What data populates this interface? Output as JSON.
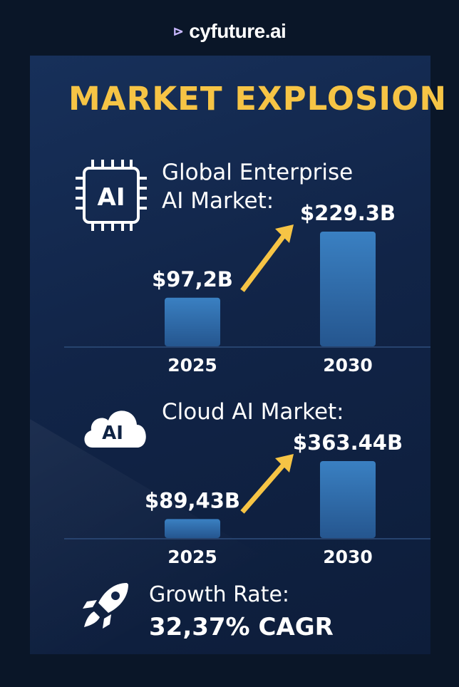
{
  "logo": {
    "text": "cyfuture.ai"
  },
  "title": "MARKET EXPLOSION",
  "colors": {
    "background": "#0a1628",
    "title": "#f6c445",
    "bar": "#3377b8",
    "arrow": "#f6c445"
  },
  "sections": [
    {
      "icon": "ai-chip-icon",
      "heading_line1": "Global Enterprise",
      "heading_line2": "AI Market:"
    },
    {
      "icon": "ai-cloud-icon",
      "heading_line1": "Cloud AI Market:",
      "heading_line2": ""
    }
  ],
  "growth": {
    "icon": "rocket-icon",
    "label": "Growth Rate:",
    "value": "32,37% CAGR"
  },
  "chart_data": [
    {
      "type": "bar",
      "title": "Global Enterprise AI Market:",
      "categories": [
        "2025",
        "2030"
      ],
      "values": [
        97.2,
        229.3
      ],
      "data_labels": [
        "$97,2B",
        "$229.3B"
      ],
      "unit": "B USD",
      "grid": false
    },
    {
      "type": "bar",
      "title": "Cloud AI Market:",
      "categories": [
        "2025",
        "2030"
      ],
      "values": [
        89.43,
        363.44
      ],
      "data_labels": [
        "$89,43B",
        "$363.44B"
      ],
      "unit": "B USD",
      "grid": false
    }
  ]
}
